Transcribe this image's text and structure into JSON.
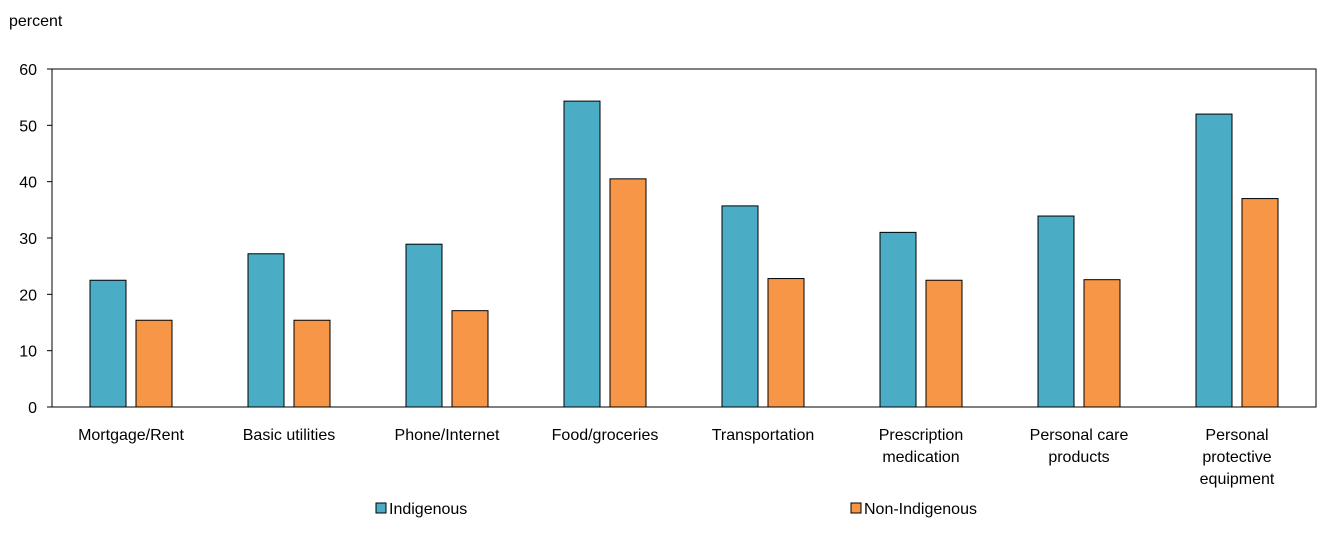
{
  "chart_data": {
    "type": "bar",
    "ylabel": "percent",
    "ylim": [
      0,
      60
    ],
    "yticks": [
      0,
      10,
      20,
      30,
      40,
      50,
      60
    ],
    "categories": [
      [
        "Mortgage/Rent"
      ],
      [
        "Basic utilities"
      ],
      [
        "Phone/Internet"
      ],
      [
        "Food/groceries"
      ],
      [
        "Transportation"
      ],
      [
        "Prescription",
        "medication"
      ],
      [
        "Personal care",
        "products"
      ],
      [
        "Personal",
        "protective",
        "equipment"
      ]
    ],
    "series": [
      {
        "name": "Indigenous",
        "color": "#4BACC6",
        "values": [
          22.5,
          27.2,
          28.9,
          54.3,
          35.7,
          31.0,
          33.9,
          52.0
        ]
      },
      {
        "name": "Non-Indigenous",
        "color": "#F79646",
        "values": [
          15.4,
          15.4,
          17.1,
          40.5,
          22.8,
          22.5,
          22.6,
          37.0
        ]
      }
    ],
    "grid": false,
    "legend_position": "bottom"
  }
}
